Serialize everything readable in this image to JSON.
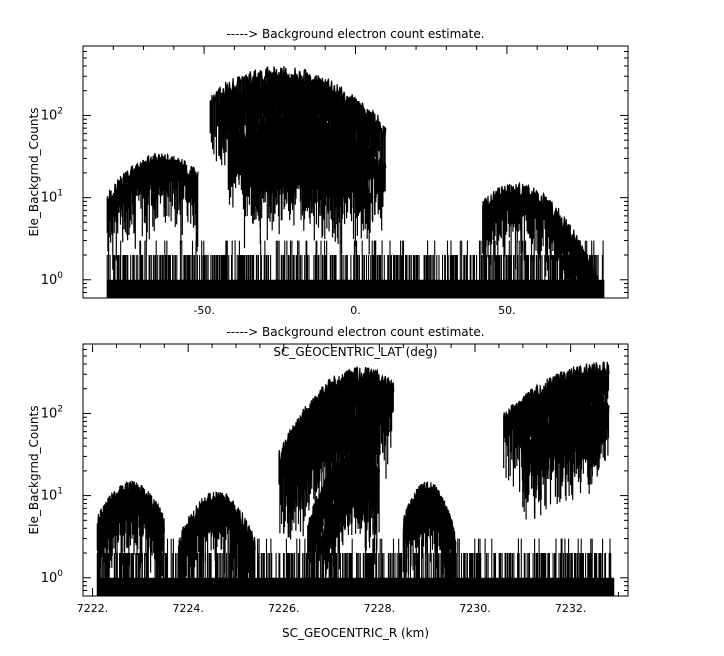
{
  "chart_data": [
    {
      "type": "line",
      "title": "-----> Background electron count estimate.",
      "xlabel": "SC_GEOCENTRIC_LAT (deg)",
      "ylabel": "Ele_Backgrnd_Counts",
      "xlim": [
        -90,
        90
      ],
      "ylim": [
        0.6,
        700
      ],
      "yscale": "log",
      "xticks": [
        {
          "value": -50,
          "label": "-50."
        },
        {
          "value": 0,
          "label": "0."
        },
        {
          "value": 50,
          "label": "50."
        }
      ],
      "xminor_step": 10,
      "yticks": [
        {
          "value": 1,
          "base": "10",
          "exp": "0"
        },
        {
          "value": 10,
          "base": "10",
          "exp": "1"
        },
        {
          "value": 100,
          "base": "10",
          "exp": "2"
        }
      ],
      "line_color": "#000000",
      "grid": false,
      "legend": "none",
      "baseline": {
        "x_range": [
          -82,
          82
        ],
        "values": [
          1,
          2,
          3
        ]
      },
      "series": [
        {
          "peak_x": -25,
          "peak": 320,
          "width": 19,
          "lo": -48,
          "hi": 5
        },
        {
          "peak_x": -23,
          "peak": 260,
          "width": 20,
          "lo": -45,
          "hi": 8
        },
        {
          "peak_x": -22,
          "peak": 200,
          "width": 21,
          "lo": -44,
          "hi": 10
        },
        {
          "peak_x": -21,
          "peak": 90,
          "width": 19,
          "lo": -42,
          "hi": 7
        },
        {
          "peak_x": -19,
          "peak": 70,
          "width": 19,
          "lo": -40,
          "hi": 10
        },
        {
          "peak_x": -20,
          "peak": 40,
          "width": 16,
          "lo": -37,
          "hi": 5
        },
        {
          "peak_x": -21,
          "peak": 30,
          "width": 14,
          "lo": -34,
          "hi": -4
        },
        {
          "peak_x": -64,
          "peak": 28,
          "width": 12,
          "lo": -82,
          "hi": -52
        },
        {
          "peak_x": 53,
          "peak": 12,
          "width": 12,
          "lo": 42,
          "hi": 80
        }
      ]
    },
    {
      "type": "line",
      "title": "-----> Background electron count estimate.",
      "xlabel": "SC_GEOCENTRIC_R (km)",
      "ylabel": "Ele_Backgrnd_Counts",
      "xlim": [
        7221.8,
        7233.2
      ],
      "ylim": [
        0.6,
        700
      ],
      "yscale": "log",
      "xticks": [
        {
          "value": 7222,
          "label": "7222."
        },
        {
          "value": 7224,
          "label": "7224."
        },
        {
          "value": 7226,
          "label": "7226."
        },
        {
          "value": 7228,
          "label": "7228."
        },
        {
          "value": 7230,
          "label": "7230."
        },
        {
          "value": 7232,
          "label": "7232."
        }
      ],
      "xminor_step": 0.5,
      "yticks": [
        {
          "value": 1,
          "base": "10",
          "exp": "0"
        },
        {
          "value": 10,
          "base": "10",
          "exp": "1"
        },
        {
          "value": 100,
          "base": "10",
          "exp": "2"
        }
      ],
      "line_color": "#000000",
      "grid": false,
      "legend": "none",
      "baseline": {
        "x_range": [
          7222.1,
          7232.9
        ],
        "values": [
          1,
          2,
          3
        ]
      },
      "series": [
        {
          "peak_x": 7227.6,
          "peak": 300,
          "width": 0.75,
          "lo": 7226.0,
          "hi": 7228.3
        },
        {
          "peak_x": 7227.4,
          "peak": 220,
          "width": 0.75,
          "lo": 7225.9,
          "hi": 7228.2
        },
        {
          "peak_x": 7227.3,
          "peak": 100,
          "width": 0.7,
          "lo": 7226.0,
          "hi": 7228.0
        },
        {
          "peak_x": 7227.2,
          "peak": 70,
          "width": 0.65,
          "lo": 7226.1,
          "hi": 7227.9
        },
        {
          "peak_x": 7227.5,
          "peak": 30,
          "width": 0.5,
          "lo": 7226.5,
          "hi": 7228.0
        },
        {
          "peak_x": 7227.6,
          "peak": 20,
          "width": 0.4,
          "lo": 7226.8,
          "hi": 7227.95
        },
        {
          "peak_x": 7232.8,
          "peak": 350,
          "width": 1.3,
          "lo": 7230.6,
          "hi": 7232.8
        },
        {
          "peak_x": 7232.6,
          "peak": 250,
          "width": 1.2,
          "lo": 7230.8,
          "hi": 7232.7
        },
        {
          "peak_x": 7232.7,
          "peak": 120,
          "width": 1.1,
          "lo": 7231.0,
          "hi": 7232.8
        },
        {
          "peak_x": 7232.5,
          "peak": 90,
          "width": 1.0,
          "lo": 7231.2,
          "hi": 7232.6
        },
        {
          "peak_x": 7229.0,
          "peak": 12,
          "width": 0.35,
          "lo": 7228.5,
          "hi": 7229.6
        },
        {
          "peak_x": 7222.8,
          "peak": 12,
          "width": 0.5,
          "lo": 7222.1,
          "hi": 7223.5
        },
        {
          "peak_x": 7224.6,
          "peak": 9,
          "width": 0.5,
          "lo": 7223.8,
          "hi": 7225.4
        }
      ]
    }
  ]
}
